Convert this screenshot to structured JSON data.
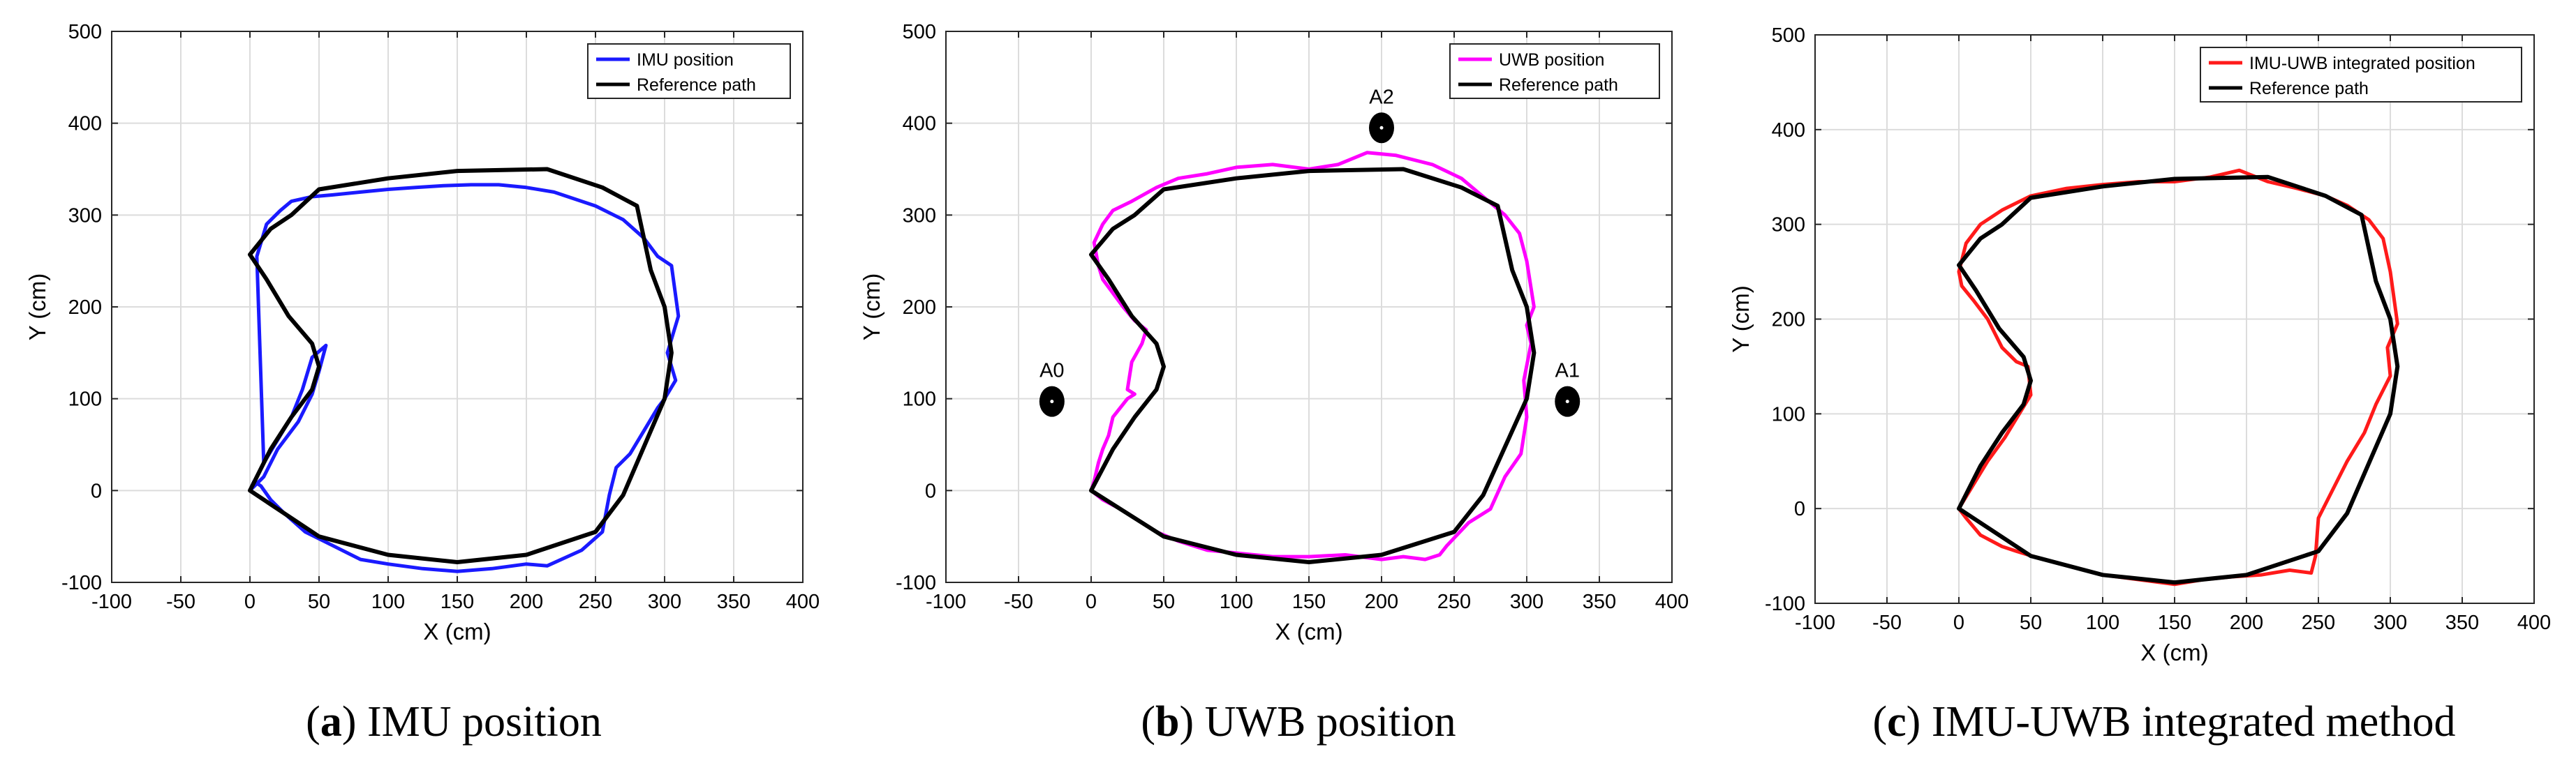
{
  "chart_data": [
    {
      "type": "line",
      "caption_letter": "a",
      "caption_text": "IMU position",
      "xlabel": "X (cm)",
      "ylabel": "Y (cm)",
      "xlim": [
        -100,
        400
      ],
      "ylim": [
        -100,
        500
      ],
      "xticks": [
        -100,
        -50,
        0,
        50,
        100,
        150,
        200,
        250,
        300,
        350,
        400
      ],
      "yticks": [
        -100,
        0,
        100,
        200,
        300,
        400,
        500
      ],
      "grid": true,
      "legend_position": "top-right",
      "series": [
        {
          "name": "IMU position",
          "color": "#1a1aff",
          "x": [
            0,
            10,
            20,
            35,
            45,
            50,
            55,
            45,
            38,
            30,
            20,
            10,
            5,
            12,
            22,
            30,
            45,
            60,
            80,
            100,
            120,
            140,
            160,
            180,
            200,
            220,
            250,
            270,
            285,
            295,
            305,
            310,
            302,
            308,
            300,
            295,
            285,
            275,
            265,
            260,
            255,
            240,
            215,
            200,
            175,
            150,
            125,
            100,
            80,
            60,
            40,
            25,
            15,
            8,
            3,
            0
          ],
          "y": [
            0,
            15,
            45,
            75,
            105,
            130,
            158,
            145,
            110,
            80,
            55,
            30,
            255,
            290,
            305,
            315,
            320,
            322,
            325,
            328,
            330,
            332,
            333,
            333,
            330,
            325,
            310,
            295,
            275,
            255,
            245,
            190,
            150,
            120,
            100,
            90,
            65,
            40,
            25,
            -5,
            -45,
            -65,
            -82,
            -80,
            -85,
            -88,
            -85,
            -80,
            -75,
            -60,
            -45,
            -25,
            -10,
            5,
            10,
            0
          ]
        },
        {
          "name": "Reference path",
          "color": "#000000",
          "x": [
            0,
            50,
            100,
            150,
            200,
            250,
            270,
            300,
            305,
            300,
            290,
            280,
            255,
            215,
            150,
            100,
            50,
            30,
            15,
            0,
            12,
            28,
            45,
            50,
            45,
            30,
            15,
            0
          ],
          "y": [
            0,
            -50,
            -70,
            -78,
            -70,
            -45,
            -5,
            100,
            150,
            200,
            240,
            310,
            330,
            350,
            348,
            340,
            328,
            300,
            285,
            257,
            230,
            190,
            160,
            135,
            110,
            80,
            45,
            0
          ]
        }
      ],
      "anchors": []
    },
    {
      "type": "line",
      "caption_letter": "b",
      "caption_text": "UWB position",
      "xlabel": "X (cm)",
      "ylabel": "Y (cm)",
      "xlim": [
        -100,
        400
      ],
      "ylim": [
        -100,
        500
      ],
      "xticks": [
        -100,
        -50,
        0,
        50,
        100,
        150,
        200,
        250,
        300,
        350,
        400
      ],
      "yticks": [
        -100,
        0,
        100,
        200,
        300,
        400,
        500
      ],
      "grid": true,
      "legend_position": "top-right",
      "series": [
        {
          "name": "UWB position",
          "color": "#ff00ff",
          "x": [
            0,
            2,
            5,
            8,
            12,
            15,
            20,
            25,
            30,
            25,
            28,
            35,
            38,
            30,
            22,
            15,
            8,
            5,
            2,
            8,
            15,
            28,
            45,
            60,
            80,
            100,
            125,
            150,
            170,
            190,
            210,
            235,
            255,
            270,
            285,
            295,
            300,
            305,
            300,
            303,
            298,
            300,
            296,
            285,
            275,
            260,
            245,
            240,
            230,
            215,
            200,
            175,
            150,
            125,
            100,
            80,
            60,
            45,
            35,
            20,
            8,
            0
          ],
          "y": [
            0,
            10,
            30,
            45,
            60,
            80,
            90,
            100,
            105,
            110,
            140,
            160,
            175,
            185,
            200,
            215,
            230,
            245,
            270,
            290,
            305,
            315,
            330,
            340,
            345,
            352,
            355,
            350,
            355,
            368,
            365,
            355,
            340,
            320,
            300,
            280,
            250,
            200,
            180,
            160,
            120,
            80,
            40,
            15,
            -20,
            -35,
            -60,
            -70,
            -75,
            -72,
            -75,
            -70,
            -72,
            -72,
            -68,
            -65,
            -55,
            -45,
            -35,
            -20,
            -10,
            0
          ]
        },
        {
          "name": "Reference path",
          "color": "#000000",
          "x": [
            0,
            50,
            100,
            150,
            200,
            250,
            270,
            300,
            305,
            300,
            290,
            280,
            255,
            215,
            150,
            100,
            50,
            30,
            15,
            0,
            12,
            28,
            45,
            50,
            45,
            30,
            15,
            0
          ],
          "y": [
            0,
            -50,
            -70,
            -78,
            -70,
            -45,
            -5,
            100,
            150,
            200,
            240,
            310,
            330,
            350,
            348,
            340,
            328,
            300,
            285,
            257,
            230,
            190,
            160,
            135,
            110,
            80,
            45,
            0
          ]
        }
      ],
      "anchors": [
        {
          "label": "A0",
          "x": -27,
          "y": 97
        },
        {
          "label": "A1",
          "x": 328,
          "y": 97
        },
        {
          "label": "A2",
          "x": 200,
          "y": 395
        }
      ]
    },
    {
      "type": "line",
      "caption_letter": "c",
      "caption_text": "IMU-UWB integrated method",
      "xlabel": "X (cm)",
      "ylabel": "Y (cm)",
      "xlim": [
        -100,
        400
      ],
      "ylim": [
        -100,
        500
      ],
      "xticks": [
        -100,
        -50,
        0,
        50,
        100,
        150,
        200,
        250,
        300,
        350,
        400
      ],
      "yticks": [
        -100,
        0,
        100,
        200,
        300,
        400,
        500
      ],
      "grid": true,
      "legend_position": "top-right",
      "series": [
        {
          "name": "IMU-UWB integrated position",
          "color": "#ff1a1a",
          "x": [
            0,
            10,
            20,
            32,
            42,
            50,
            48,
            40,
            30,
            20,
            10,
            2,
            0,
            5,
            15,
            30,
            50,
            75,
            100,
            125,
            150,
            175,
            195,
            215,
            235,
            255,
            270,
            285,
            295,
            300,
            305,
            298,
            300,
            290,
            282,
            270,
            260,
            250,
            248,
            245,
            230,
            210,
            190,
            170,
            150,
            125,
            100,
            75,
            55,
            40,
            30,
            15,
            5,
            0
          ],
          "y": [
            0,
            25,
            50,
            75,
            100,
            120,
            150,
            155,
            170,
            200,
            220,
            235,
            250,
            280,
            300,
            315,
            330,
            338,
            342,
            345,
            345,
            350,
            357,
            345,
            338,
            330,
            320,
            305,
            285,
            250,
            195,
            170,
            140,
            110,
            80,
            50,
            20,
            -10,
            -50,
            -68,
            -65,
            -70,
            -72,
            -75,
            -80,
            -75,
            -70,
            -60,
            -52,
            -45,
            -40,
            -28,
            -10,
            0
          ]
        },
        {
          "name": "Reference path",
          "color": "#000000",
          "x": [
            0,
            50,
            100,
            150,
            200,
            250,
            270,
            300,
            305,
            300,
            290,
            280,
            255,
            215,
            150,
            100,
            50,
            30,
            15,
            0,
            12,
            28,
            45,
            50,
            45,
            30,
            15,
            0
          ],
          "y": [
            0,
            -50,
            -70,
            -78,
            -70,
            -45,
            -5,
            100,
            150,
            200,
            240,
            310,
            330,
            350,
            348,
            340,
            328,
            300,
            285,
            257,
            230,
            190,
            160,
            135,
            110,
            80,
            45,
            0
          ]
        }
      ],
      "anchors": []
    }
  ]
}
